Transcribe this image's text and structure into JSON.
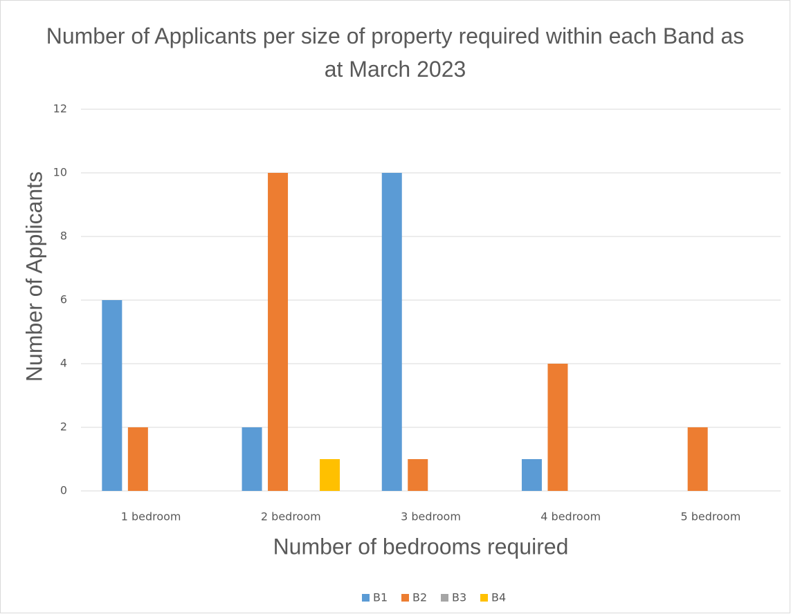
{
  "chart_data": {
    "type": "bar",
    "title": "Number of Applicants per size of property required within each Band as at March 2023",
    "x_label": "Number of bedrooms required",
    "y_label": "Number of Applicants",
    "categories": [
      "1 bedroom",
      "2 bedroom",
      "3 bedroom",
      "4 bedroom",
      "5 bedroom"
    ],
    "series": [
      {
        "name": "B1",
        "color": "#5b9bd5",
        "values": [
          6,
          2,
          10,
          1,
          0
        ]
      },
      {
        "name": "B2",
        "color": "#ed7d31",
        "values": [
          2,
          10,
          1,
          4,
          2
        ]
      },
      {
        "name": "B3",
        "color": "#a5a5a5",
        "values": [
          0,
          0,
          0,
          0,
          0
        ]
      },
      {
        "name": "B4",
        "color": "#ffc000",
        "values": [
          0,
          1,
          0,
          0,
          0
        ]
      }
    ],
    "ylim": [
      0,
      12
    ],
    "yticks": [
      0,
      2,
      4,
      6,
      8,
      10,
      12
    ],
    "grid": true,
    "legend": "bottom"
  }
}
